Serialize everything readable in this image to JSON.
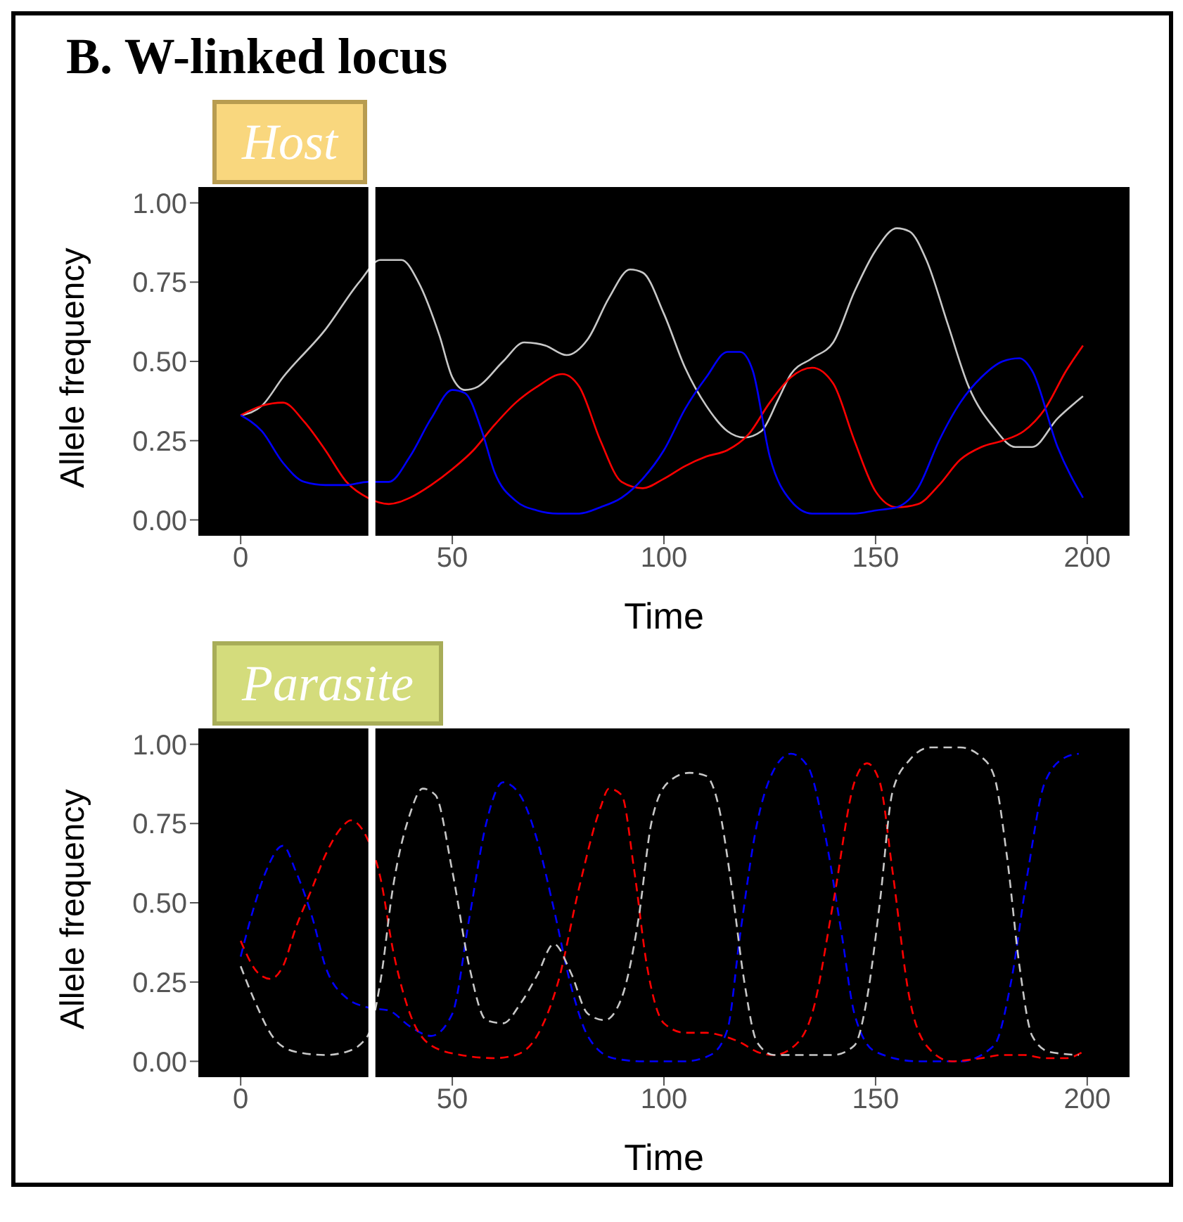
{
  "chart_data": [
    {
      "type": "line",
      "title": "B. W-linked locus",
      "subtitle": "Host",
      "xlabel": "Time",
      "ylabel": "Allele frequency",
      "xlim": [
        -10,
        210
      ],
      "xticks": [
        0,
        50,
        100,
        150,
        200
      ],
      "ylim": [
        -0.05,
        1.05
      ],
      "yticks": [
        {
          "value": 0,
          "label": "0.00"
        },
        {
          "value": 0.25,
          "label": "0.25"
        },
        {
          "value": 0.5,
          "label": "0.50"
        },
        {
          "value": 0.75,
          "label": "0.75"
        },
        {
          "value": 1,
          "label": "1.00"
        }
      ],
      "grid": false,
      "line_style": "solid",
      "ref_lines": [
        {
          "axis": "x",
          "value": 31,
          "color": "#ffffff"
        }
      ],
      "series": [
        {
          "color": "#c8c8c8",
          "x": [
            0,
            5,
            10,
            20,
            28,
            33,
            38,
            42,
            47,
            50,
            53,
            56,
            62,
            67,
            72,
            77,
            82,
            87,
            92,
            95,
            100,
            105,
            110,
            115,
            119,
            123,
            127,
            130,
            135,
            140,
            145,
            150,
            155,
            158,
            162,
            167,
            172,
            178,
            183,
            187,
            193,
            199
          ],
          "values": [
            0.33,
            0.36,
            0.45,
            0.6,
            0.75,
            0.82,
            0.82,
            0.75,
            0.58,
            0.45,
            0.41,
            0.42,
            0.5,
            0.56,
            0.55,
            0.52,
            0.57,
            0.7,
            0.79,
            0.78,
            0.65,
            0.48,
            0.36,
            0.28,
            0.26,
            0.28,
            0.38,
            0.46,
            0.51,
            0.56,
            0.72,
            0.85,
            0.92,
            0.91,
            0.82,
            0.62,
            0.42,
            0.29,
            0.23,
            0.23,
            0.32,
            0.39
          ]
        },
        {
          "color": "#ff0000",
          "x": [
            0,
            5,
            10,
            15,
            20,
            25,
            30,
            35,
            40,
            45,
            50,
            55,
            60,
            65,
            70,
            76,
            80,
            85,
            90,
            95,
            100,
            105,
            110,
            115,
            120,
            125,
            130,
            135,
            140,
            145,
            150,
            155,
            160,
            165,
            170,
            175,
            180,
            185,
            190,
            195,
            199
          ],
          "values": [
            0.33,
            0.36,
            0.37,
            0.31,
            0.22,
            0.12,
            0.07,
            0.05,
            0.07,
            0.11,
            0.16,
            0.22,
            0.3,
            0.37,
            0.42,
            0.46,
            0.42,
            0.25,
            0.12,
            0.1,
            0.13,
            0.17,
            0.2,
            0.22,
            0.27,
            0.37,
            0.45,
            0.48,
            0.43,
            0.25,
            0.09,
            0.04,
            0.05,
            0.11,
            0.19,
            0.23,
            0.25,
            0.28,
            0.35,
            0.47,
            0.55
          ]
        },
        {
          "color": "#0000ff",
          "x": [
            0,
            5,
            10,
            15,
            20,
            25,
            30,
            35,
            40,
            45,
            50,
            53,
            57,
            60,
            65,
            70,
            75,
            80,
            85,
            90,
            95,
            100,
            105,
            110,
            115,
            118,
            121,
            125,
            130,
            135,
            140,
            145,
            150,
            155,
            160,
            165,
            170,
            175,
            180,
            184,
            187,
            193,
            199
          ],
          "values": [
            0.33,
            0.28,
            0.18,
            0.12,
            0.11,
            0.11,
            0.12,
            0.12,
            0.2,
            0.32,
            0.41,
            0.4,
            0.28,
            0.15,
            0.06,
            0.03,
            0.02,
            0.02,
            0.04,
            0.07,
            0.13,
            0.22,
            0.35,
            0.45,
            0.53,
            0.53,
            0.47,
            0.2,
            0.06,
            0.02,
            0.02,
            0.02,
            0.03,
            0.04,
            0.1,
            0.25,
            0.37,
            0.45,
            0.5,
            0.51,
            0.47,
            0.23,
            0.07
          ]
        }
      ]
    },
    {
      "type": "line",
      "title": "Parasite",
      "xlabel": "Time",
      "ylabel": "Allele frequency",
      "xlim": [
        -10,
        210
      ],
      "xticks": [
        0,
        50,
        100,
        150,
        200
      ],
      "ylim": [
        -0.05,
        1.05
      ],
      "yticks": [
        {
          "value": 0,
          "label": "0.00"
        },
        {
          "value": 0.25,
          "label": "0.25"
        },
        {
          "value": 0.5,
          "label": "0.50"
        },
        {
          "value": 0.75,
          "label": "0.75"
        },
        {
          "value": 1,
          "label": "1.00"
        }
      ],
      "grid": false,
      "line_style": "dashed",
      "ref_lines": [
        {
          "axis": "x",
          "value": 31,
          "color": "#ffffff"
        }
      ],
      "series": [
        {
          "color": "#0000ff",
          "x": [
            0,
            3,
            6,
            10,
            13,
            17,
            20,
            25,
            30,
            35,
            40,
            45,
            50,
            54,
            58,
            62,
            66,
            70,
            74,
            78,
            82,
            88,
            95,
            105,
            111,
            115,
            118,
            122,
            126,
            130,
            134,
            138,
            142,
            145,
            150,
            160,
            170,
            178,
            182,
            186,
            190,
            195,
            198
          ],
          "values": [
            0.33,
            0.48,
            0.6,
            0.68,
            0.6,
            0.45,
            0.3,
            0.2,
            0.17,
            0.16,
            0.11,
            0.08,
            0.15,
            0.45,
            0.75,
            0.88,
            0.84,
            0.7,
            0.48,
            0.24,
            0.08,
            0.01,
            0,
            0,
            0.02,
            0.1,
            0.4,
            0.75,
            0.92,
            0.97,
            0.93,
            0.72,
            0.4,
            0.15,
            0.03,
            0,
            0,
            0.05,
            0.25,
            0.6,
            0.88,
            0.96,
            0.97
          ]
        },
        {
          "color": "#ff0000",
          "x": [
            0,
            4,
            7,
            10,
            13,
            17,
            20,
            24,
            26,
            30,
            33,
            36,
            40,
            45,
            52,
            60,
            65,
            70,
            75,
            80,
            85,
            87,
            90,
            93,
            96,
            100,
            105,
            110,
            114,
            118,
            122,
            126,
            130,
            135,
            140,
            145,
            148,
            151,
            154,
            158,
            162,
            168,
            175,
            180,
            185,
            190,
            195,
            199
          ],
          "values": [
            0.38,
            0.28,
            0.26,
            0.3,
            0.42,
            0.55,
            0.65,
            0.74,
            0.76,
            0.7,
            0.58,
            0.35,
            0.15,
            0.05,
            0.02,
            0.01,
            0.02,
            0.08,
            0.25,
            0.55,
            0.8,
            0.86,
            0.84,
            0.6,
            0.3,
            0.12,
            0.09,
            0.09,
            0.08,
            0.06,
            0.03,
            0.02,
            0.04,
            0.15,
            0.5,
            0.88,
            0.94,
            0.88,
            0.6,
            0.2,
            0.05,
            0,
            0.01,
            0.02,
            0.02,
            0.01,
            0.01,
            0.03
          ]
        },
        {
          "color": "#c8c8c8",
          "x": [
            0,
            3,
            8,
            13,
            20,
            25,
            30,
            33,
            36,
            40,
            43,
            46,
            50,
            54,
            58,
            62,
            66,
            70,
            74,
            78,
            82,
            86,
            90,
            94,
            97,
            101,
            106,
            110,
            113,
            116,
            119,
            122,
            126,
            135,
            140,
            145,
            148,
            151,
            154,
            158,
            163,
            170,
            175,
            178,
            181,
            184,
            187,
            191,
            198
          ],
          "values": [
            0.3,
            0.2,
            0.07,
            0.03,
            0.02,
            0.03,
            0.08,
            0.25,
            0.55,
            0.78,
            0.86,
            0.84,
            0.6,
            0.3,
            0.13,
            0.12,
            0.18,
            0.27,
            0.37,
            0.28,
            0.15,
            0.13,
            0.2,
            0.45,
            0.75,
            0.88,
            0.91,
            0.9,
            0.8,
            0.55,
            0.25,
            0.06,
            0.02,
            0.02,
            0.02,
            0.05,
            0.2,
            0.5,
            0.85,
            0.95,
            0.99,
            0.99,
            0.96,
            0.9,
            0.65,
            0.3,
            0.08,
            0.03,
            0.02
          ]
        }
      ]
    }
  ]
}
